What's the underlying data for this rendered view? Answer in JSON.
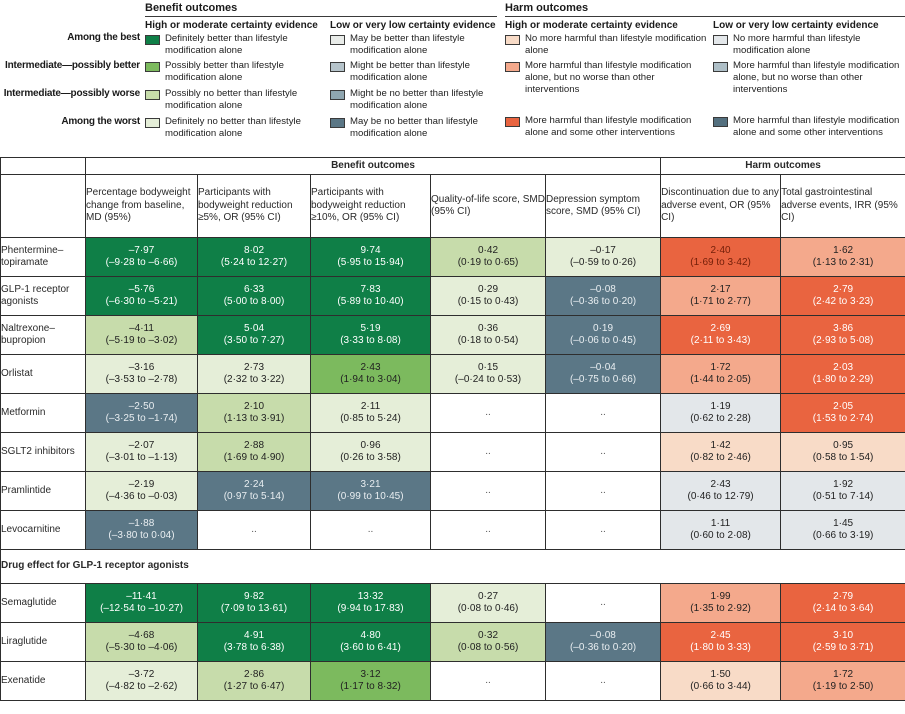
{
  "legend": {
    "row_labels": [
      "Among the best",
      "Intermediate—possibly better",
      "Intermediate—possibly worse",
      "Among the worst"
    ],
    "benefit": {
      "title": "Benefit outcomes",
      "high_header": "High or moderate certainty evidence",
      "low_header": "Low or very low certainty evidence",
      "high_items": [
        {
          "label": "Definitely better than lifestyle modification alone",
          "color": "#0f7f47"
        },
        {
          "label": "Possibly better than lifestyle modification alone",
          "color": "#7cba5e"
        },
        {
          "label": "Possibly no better than lifestyle modification alone",
          "color": "#c7dcab"
        },
        {
          "label": "Definitely no better than lifestyle modification alone",
          "color": "#e5eed8"
        }
      ],
      "low_items": [
        {
          "label": "May be better than lifestyle modification alone",
          "color": "#e9ece9"
        },
        {
          "label": "Might be better than lifestyle modification alone",
          "color": "#b6c4cb"
        },
        {
          "label": "Might be no better than lifestyle modification alone",
          "color": "#8fa6b0"
        },
        {
          "label": "May be no better than lifestyle modification alone",
          "color": "#5b7786"
        }
      ]
    },
    "harm": {
      "title": "Harm outcomes",
      "high_header": "High or moderate certainty evidence",
      "low_header": "Low or very low certainty evidence",
      "high_items": [
        {
          "label": "No more harmful than lifestyle modification alone",
          "color": "#f8dbc7"
        },
        {
          "label": "More harmful than lifestyle modification alone, but no worse than other interventions",
          "color": "#f4a98c"
        },
        {
          "label": "More harmful than lifestyle modification alone and some other interventions",
          "color": "#e96440"
        }
      ],
      "low_items": [
        {
          "label": "No more harmful than lifestyle modification alone",
          "color": "#e3e7ea"
        },
        {
          "label": "More harmful than lifestyle modification alone, but no worse than other interventions",
          "color": "#aebfc7"
        },
        {
          "label": "More harmful than lifestyle modification alone and some other interventions",
          "color": "#54707f"
        }
      ]
    }
  },
  "chart_data": {
    "type": "table",
    "group_headers": [
      "Benefit outcomes",
      "Harm outcomes"
    ],
    "columns": [
      "Percentage bodyweight change from baseline, MD (95%)",
      "Participants with bodyweight reduction ≥5%, OR (95% CI)",
      "Participants with bodyweight reduction ≥10%, OR (95% CI)",
      "Quality-of-life score, SMD (95% CI)",
      "Depression symptom score, SMD (95% CI)",
      "Discontinuation due to any adverse event, OR (95% CI)",
      "Total gastrointestinal adverse events, IRR (95% CI)"
    ],
    "styles": {
      "g1": {
        "bg": "#0f7f47",
        "fg": "#ffffff"
      },
      "g2": {
        "bg": "#7cba5e",
        "fg": "#222222"
      },
      "g3": {
        "bg": "#c7dcab",
        "fg": "#222222"
      },
      "g4": {
        "bg": "#e5eed8",
        "fg": "#222222"
      },
      "sl": {
        "bg": "#5b7786",
        "fg": "#e9eef1"
      },
      "gy": {
        "bg": "#e3e7ea",
        "fg": "#222222"
      },
      "pc": {
        "bg": "#f8dbc7",
        "fg": "#222222"
      },
      "sa": {
        "bg": "#f4a98c",
        "fg": "#222222"
      },
      "or": {
        "bg": "#e96440",
        "fg": "#ffffff"
      },
      "ord": {
        "bg": "#e96440",
        "fg": "#731f09"
      },
      "dots": {
        "bg": "#ffffff",
        "fg": "#555555"
      }
    },
    "rows": [
      {
        "drug": "Phentermine–topiramate",
        "cells": [
          {
            "value": "–7·97",
            "ci": "(–9·28 to –6·66)",
            "style": "g1"
          },
          {
            "value": "8·02",
            "ci": "(5·24 to 12·27)",
            "style": "g1"
          },
          {
            "value": "9·74",
            "ci": "(5·95 to 15·94)",
            "style": "g1"
          },
          {
            "value": "0·42",
            "ci": "(0·19 to 0·65)",
            "style": "g3"
          },
          {
            "value": "–0·17",
            "ci": "(–0·59 to 0·26)",
            "style": "g4"
          },
          {
            "value": "2·40",
            "ci": "(1·69 to 3·42)",
            "style": "ord"
          },
          {
            "value": "1·62",
            "ci": "(1·13 to 2·31)",
            "style": "sa"
          }
        ]
      },
      {
        "drug": "GLP-1 receptor agonists",
        "cells": [
          {
            "value": "–5·76",
            "ci": "(–6·30 to –5·21)",
            "style": "g1"
          },
          {
            "value": "6·33",
            "ci": "(5·00 to 8·00)",
            "style": "g1"
          },
          {
            "value": "7·83",
            "ci": "(5·89 to 10·40)",
            "style": "g1"
          },
          {
            "value": "0·29",
            "ci": "(0·15 to 0·43)",
            "style": "g4"
          },
          {
            "value": "–0·08",
            "ci": "(–0·36 to 0·20)",
            "style": "sl"
          },
          {
            "value": "2·17",
            "ci": "(1·71 to 2·77)",
            "style": "sa"
          },
          {
            "value": "2·79",
            "ci": "(2·42 to 3·23)",
            "style": "or"
          }
        ]
      },
      {
        "drug": "Naltrexone–bupropion",
        "cells": [
          {
            "value": "–4·11",
            "ci": "(–5·19 to –3·02)",
            "style": "g3"
          },
          {
            "value": "5·04",
            "ci": "(3·50 to 7·27)",
            "style": "g1"
          },
          {
            "value": "5·19",
            "ci": "(3·33 to 8·08)",
            "style": "g1"
          },
          {
            "value": "0·36",
            "ci": "(0·18 to 0·54)",
            "style": "g4"
          },
          {
            "value": "0·19",
            "ci": "(–0·06 to 0·45)",
            "style": "sl"
          },
          {
            "value": "2·69",
            "ci": "(2·11 to 3·43)",
            "style": "or"
          },
          {
            "value": "3·86",
            "ci": "(2·93 to 5·08)",
            "style": "or"
          }
        ]
      },
      {
        "drug": "Orlistat",
        "cells": [
          {
            "value": "–3·16",
            "ci": "(–3·53 to –2·78)",
            "style": "g4"
          },
          {
            "value": "2·73",
            "ci": "(2·32 to 3·22)",
            "style": "g4"
          },
          {
            "value": "2·43",
            "ci": "(1·94 to 3·04)",
            "style": "g2"
          },
          {
            "value": "0·15",
            "ci": "(–0·24 to 0·53)",
            "style": "g4"
          },
          {
            "value": "–0·04",
            "ci": "(–0·75 to 0·66)",
            "style": "sl"
          },
          {
            "value": "1·72",
            "ci": "(1·44 to 2·05)",
            "style": "sa"
          },
          {
            "value": "2·03",
            "ci": "(1·80 to 2·29)",
            "style": "or"
          }
        ]
      },
      {
        "drug": "Metformin",
        "cells": [
          {
            "value": "–2·50",
            "ci": "(–3·25 to –1·74)",
            "style": "sl"
          },
          {
            "value": "2·10",
            "ci": "(1·13 to 3·91)",
            "style": "g3"
          },
          {
            "value": "2·11",
            "ci": "(0·85 to 5·24)",
            "style": "g4"
          },
          {
            "value": "..",
            "ci": "",
            "style": "dots"
          },
          {
            "value": "..",
            "ci": "",
            "style": "dots"
          },
          {
            "value": "1·19",
            "ci": "(0·62 to 2·28)",
            "style": "gy"
          },
          {
            "value": "2·05",
            "ci": "(1·53 to 2·74)",
            "style": "or"
          }
        ]
      },
      {
        "drug": "SGLT2 inhibitors",
        "cells": [
          {
            "value": "–2·07",
            "ci": "(–3·01 to –1·13)",
            "style": "g4"
          },
          {
            "value": "2·88",
            "ci": "(1·69 to 4·90)",
            "style": "g3"
          },
          {
            "value": "0·96",
            "ci": "(0·26 to 3·58)",
            "style": "g4"
          },
          {
            "value": "..",
            "ci": "",
            "style": "dots"
          },
          {
            "value": "..",
            "ci": "",
            "style": "dots"
          },
          {
            "value": "1·42",
            "ci": "(0·82 to 2·46)",
            "style": "pc"
          },
          {
            "value": "0·95",
            "ci": "(0·58 to 1·54)",
            "style": "pc"
          }
        ]
      },
      {
        "drug": "Pramlintide",
        "cells": [
          {
            "value": "–2·19",
            "ci": "(–4·36 to –0·03)",
            "style": "g4"
          },
          {
            "value": "2·24",
            "ci": "(0·97 to 5·14)",
            "style": "sl"
          },
          {
            "value": "3·21",
            "ci": "(0·99 to 10·45)",
            "style": "sl"
          },
          {
            "value": "..",
            "ci": "",
            "style": "dots"
          },
          {
            "value": "..",
            "ci": "",
            "style": "dots"
          },
          {
            "value": "2·43",
            "ci": "(0·46 to 12·79)",
            "style": "gy"
          },
          {
            "value": "1·92",
            "ci": "(0·51 to 7·14)",
            "style": "gy"
          }
        ]
      },
      {
        "drug": "Levocarnitine",
        "cells": [
          {
            "value": "–1·88",
            "ci": "(–3·80 to 0·04)",
            "style": "sl"
          },
          {
            "value": "..",
            "ci": "",
            "style": "dots"
          },
          {
            "value": "..",
            "ci": "",
            "style": "dots"
          },
          {
            "value": "..",
            "ci": "",
            "style": "dots"
          },
          {
            "value": "..",
            "ci": "",
            "style": "dots"
          },
          {
            "value": "1·11",
            "ci": "(0·60 to 2·08)",
            "style": "gy"
          },
          {
            "value": "1·45",
            "ci": "(0·66 to 3·19)",
            "style": "gy"
          }
        ]
      },
      {
        "section": "Drug effect for GLP-1 receptor agonists"
      },
      {
        "drug": "Semaglutide",
        "cells": [
          {
            "value": "–11·41",
            "ci": "(–12·54 to –10·27)",
            "style": "g1"
          },
          {
            "value": "9·82",
            "ci": "(7·09 to 13·61)",
            "style": "g1"
          },
          {
            "value": "13·32",
            "ci": "(9·94 to 17·83)",
            "style": "g1"
          },
          {
            "value": "0·27",
            "ci": "(0·08 to 0·46)",
            "style": "g4"
          },
          {
            "value": "..",
            "ci": "",
            "style": "dots"
          },
          {
            "value": "1·99",
            "ci": "(1·35 to 2·92)",
            "style": "sa"
          },
          {
            "value": "2·79",
            "ci": "(2·14 to 3·64)",
            "style": "or"
          }
        ]
      },
      {
        "drug": "Liraglutide",
        "cells": [
          {
            "value": "–4·68",
            "ci": "(–5·30 to –4·06)",
            "style": "g3"
          },
          {
            "value": "4·91",
            "ci": "(3·78 to 6·38)",
            "style": "g1"
          },
          {
            "value": "4·80",
            "ci": "(3·60 to 6·41)",
            "style": "g1"
          },
          {
            "value": "0·32",
            "ci": "(0·08 to 0·56)",
            "style": "g3"
          },
          {
            "value": "–0·08",
            "ci": "(–0·36 to 0·20)",
            "style": "sl"
          },
          {
            "value": "2·45",
            "ci": "(1·80 to 3·33)",
            "style": "or"
          },
          {
            "value": "3·10",
            "ci": "(2·59 to 3·71)",
            "style": "or"
          }
        ]
      },
      {
        "drug": "Exenatide",
        "cells": [
          {
            "value": "–3·72",
            "ci": "(–4·82 to –2·62)",
            "style": "g4"
          },
          {
            "value": "2·86",
            "ci": "(1·27 to 6·47)",
            "style": "g3"
          },
          {
            "value": "3·12",
            "ci": "(1·17 to 8·32)",
            "style": "g2"
          },
          {
            "value": "..",
            "ci": "",
            "style": "dots"
          },
          {
            "value": "..",
            "ci": "",
            "style": "dots"
          },
          {
            "value": "1·50",
            "ci": "(0·66 to 3·44)",
            "style": "pc"
          },
          {
            "value": "1·72",
            "ci": "(1·19 to 2·50)",
            "style": "sa"
          }
        ]
      }
    ]
  }
}
